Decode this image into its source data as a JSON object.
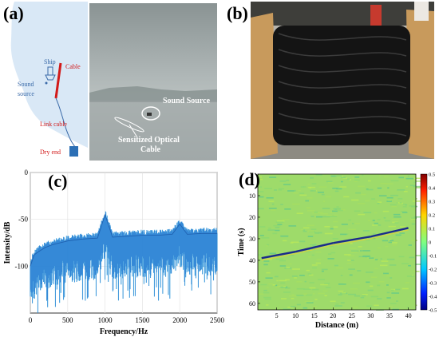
{
  "panels": {
    "a": {
      "label": "(a)",
      "map": {
        "ship": "Ship",
        "cable": "Cable",
        "sound_source": "Sound\nsource",
        "link_cable": "Link cable",
        "dry_end": "Dry end"
      },
      "photo": {
        "sound_source_label": "Sound Source",
        "cable_label_line1": "Sensitized Optical",
        "cable_label_line2": "Cable"
      }
    },
    "b": {
      "label": "(b)"
    },
    "c": {
      "label": "(c)"
    },
    "d": {
      "label": "(d)"
    }
  },
  "chart_data": [
    {
      "type": "line",
      "panel": "c",
      "xlabel": "Frequency/Hz",
      "ylabel": "Intensity/dB",
      "xlim": [
        0,
        2500
      ],
      "ylim": [
        -150,
        0
      ],
      "xticks": [
        0,
        500,
        1000,
        1500,
        2000,
        2500
      ],
      "yticks": [
        0,
        -50,
        -100
      ],
      "grid": true,
      "series": [
        {
          "color": "#2a7fd4",
          "x": [
            0,
            50,
            100,
            200,
            300,
            400,
            500,
            700,
            900,
            1000,
            1100,
            1300,
            1500,
            1700,
            1900,
            2000,
            2100,
            2300,
            2500
          ],
          "y": [
            -100,
            -88,
            -85,
            -80,
            -77,
            -75,
            -73,
            -71,
            -70,
            -45,
            -69,
            -68,
            -67,
            -67,
            -66,
            -55,
            -66,
            -65,
            -65
          ]
        }
      ]
    },
    {
      "type": "heatmap",
      "panel": "d",
      "xlabel": "Distance (m)",
      "ylabel": "Time (s)",
      "xlim": [
        0,
        42
      ],
      "ylim": [
        63,
        0
      ],
      "xticks": [
        5,
        10,
        15,
        20,
        25,
        30,
        35,
        40
      ],
      "yticks": [
        10,
        20,
        30,
        40,
        50,
        60
      ],
      "colorbar": {
        "min": -0.5,
        "max": 0.5,
        "ticks": [
          0.5,
          0.4,
          0.3,
          0.2,
          0.1,
          0,
          -0.1,
          -0.2,
          -0.3,
          -0.4,
          -0.5
        ],
        "tick_labels": [
          "0.5",
          "0.4",
          "0.3",
          "0.2",
          "0.1",
          "0",
          "-0.1",
          "-0.2",
          "-0.3",
          "-0.4",
          "-0.5"
        ]
      },
      "track": [
        {
          "distance": 1,
          "time": 39
        },
        {
          "distance": 10,
          "time": 36
        },
        {
          "distance": 20,
          "time": 32
        },
        {
          "distance": 30,
          "time": 29
        },
        {
          "distance": 40,
          "time": 25
        }
      ]
    }
  ]
}
